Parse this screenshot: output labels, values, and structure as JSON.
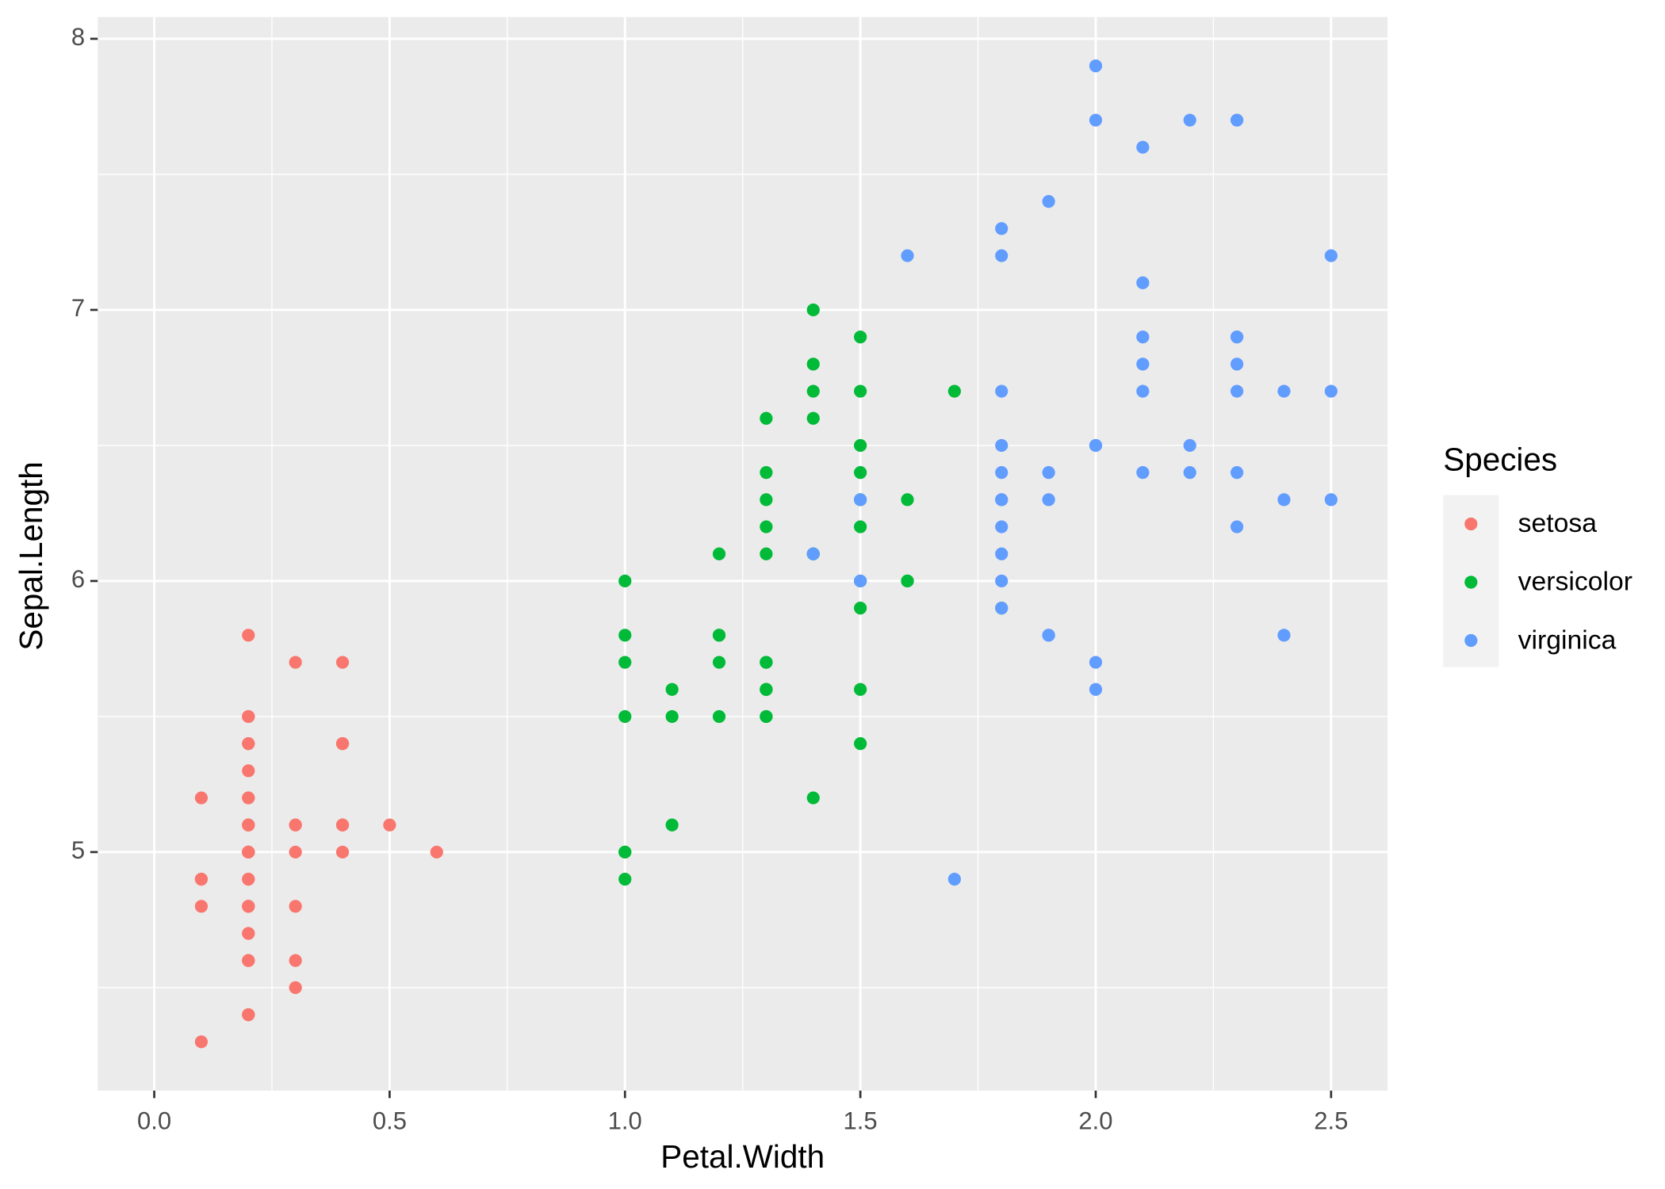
{
  "chart_data": {
    "type": "scatter",
    "x_label": "Petal.Width",
    "y_label": "Sepal.Length",
    "legend_title": "Species",
    "legend": "right",
    "grid": true,
    "xlim": [
      -0.12,
      2.62
    ],
    "ylim": [
      4.12,
      8.08
    ],
    "xticks": [
      {
        "value": 0,
        "label": "0.0"
      },
      0.5,
      {
        "value": 1,
        "label": "1.0"
      },
      1.5,
      {
        "value": 2,
        "label": "2.0"
      },
      2.5
    ],
    "yticks": [
      5,
      6,
      7,
      8
    ],
    "x_minor_grid": [
      0.25,
      0.75,
      1.25,
      1.75,
      2.25
    ],
    "y_minor_grid": [
      4.5,
      5.5,
      6.5,
      7.5
    ],
    "series": [
      {
        "name": "setosa",
        "color": "#F8766D",
        "x": [
          0.2,
          0.2,
          0.2,
          0.2,
          0.2,
          0.4,
          0.3,
          0.2,
          0.2,
          0.1,
          0.2,
          0.2,
          0.1,
          0.1,
          0.2,
          0.4,
          0.4,
          0.3,
          0.3,
          0.3,
          0.2,
          0.4,
          0.2,
          0.5,
          0.2,
          0.2,
          0.4,
          0.2,
          0.2,
          0.2,
          0.2,
          0.4,
          0.1,
          0.2,
          0.2,
          0.2,
          0.2,
          0.1,
          0.2,
          0.2,
          0.3,
          0.3,
          0.2,
          0.6,
          0.4,
          0.3,
          0.2,
          0.2,
          0.2,
          0.2
        ],
        "values": [
          5.1,
          4.9,
          4.7,
          4.6,
          5.0,
          5.4,
          4.6,
          5.0,
          4.4,
          4.9,
          5.4,
          4.8,
          4.8,
          4.3,
          5.8,
          5.7,
          5.4,
          5.1,
          5.7,
          5.1,
          5.4,
          5.1,
          4.6,
          5.1,
          4.8,
          5.0,
          5.0,
          5.2,
          5.2,
          4.7,
          4.8,
          5.4,
          5.2,
          5.5,
          4.9,
          5.0,
          5.5,
          4.9,
          4.4,
          5.1,
          5.0,
          4.5,
          4.4,
          5.0,
          5.1,
          4.8,
          5.1,
          4.6,
          5.3,
          5.0
        ]
      },
      {
        "name": "versicolor",
        "color": "#00BA38",
        "x": [
          1.4,
          1.5,
          1.5,
          1.3,
          1.5,
          1.3,
          1.6,
          1.0,
          1.3,
          1.4,
          1.0,
          1.5,
          1.0,
          1.4,
          1.3,
          1.4,
          1.5,
          1.0,
          1.5,
          1.1,
          1.8,
          1.3,
          1.5,
          1.2,
          1.3,
          1.4,
          1.4,
          1.7,
          1.5,
          1.0,
          1.1,
          1.0,
          1.2,
          1.6,
          1.5,
          1.6,
          1.5,
          1.3,
          1.3,
          1.3,
          1.2,
          1.4,
          1.2,
          1.0,
          1.3,
          1.2,
          1.3,
          1.3,
          1.1,
          1.3
        ],
        "values": [
          7.0,
          6.4,
          6.9,
          5.5,
          6.5,
          5.7,
          6.3,
          4.9,
          6.6,
          5.2,
          5.0,
          5.9,
          6.0,
          6.1,
          5.6,
          6.7,
          5.6,
          5.8,
          6.2,
          5.6,
          5.9,
          6.1,
          6.3,
          6.1,
          6.4,
          6.6,
          6.8,
          6.7,
          6.0,
          5.7,
          5.5,
          5.5,
          5.8,
          6.0,
          5.4,
          6.0,
          6.7,
          6.3,
          5.6,
          5.5,
          5.5,
          6.1,
          5.8,
          5.0,
          5.6,
          5.7,
          5.7,
          6.2,
          5.1,
          5.7
        ]
      },
      {
        "name": "virginica",
        "color": "#619CFF",
        "x": [
          2.5,
          1.9,
          2.1,
          1.8,
          2.2,
          2.1,
          1.7,
          1.8,
          1.8,
          2.5,
          2.0,
          1.9,
          2.1,
          2.0,
          2.4,
          2.3,
          1.8,
          2.2,
          2.3,
          1.5,
          2.3,
          2.0,
          2.0,
          1.8,
          2.1,
          1.8,
          1.8,
          1.8,
          2.1,
          1.6,
          1.9,
          2.0,
          2.2,
          1.5,
          1.4,
          2.3,
          2.4,
          1.8,
          1.8,
          2.1,
          2.4,
          2.3,
          1.9,
          2.3,
          2.5,
          2.3,
          1.9,
          2.0,
          2.3,
          1.8
        ],
        "values": [
          6.3,
          5.8,
          7.1,
          6.3,
          6.5,
          7.6,
          4.9,
          7.3,
          6.7,
          7.2,
          6.5,
          6.4,
          6.8,
          5.7,
          5.8,
          6.4,
          6.5,
          7.7,
          7.7,
          6.0,
          6.9,
          5.6,
          7.7,
          6.3,
          6.7,
          7.2,
          6.2,
          6.1,
          6.4,
          7.2,
          7.4,
          7.9,
          6.4,
          6.3,
          6.1,
          7.7,
          6.3,
          6.4,
          6.0,
          6.9,
          6.7,
          6.9,
          5.8,
          6.8,
          6.7,
          6.7,
          6.3,
          6.5,
          6.2,
          5.9
        ]
      }
    ]
  }
}
